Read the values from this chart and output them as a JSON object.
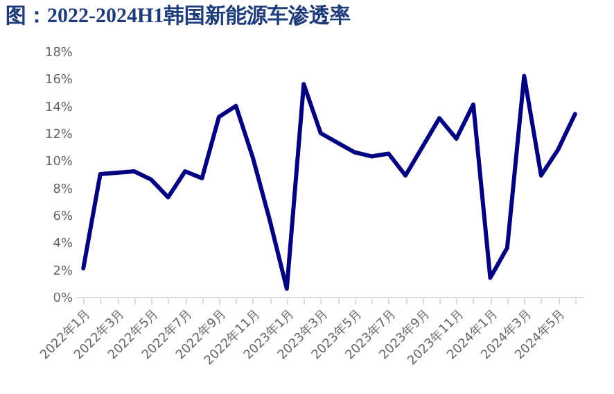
{
  "chart_data": {
    "type": "line",
    "title": "图：2022-2024H1韩国新能源车渗透率",
    "categories": [
      "2022年1月",
      null,
      "2022年3月",
      null,
      "2022年5月",
      null,
      "2022年7月",
      null,
      "2022年9月",
      null,
      "2022年11月",
      null,
      "2023年1月",
      null,
      "2023年3月",
      null,
      "2023年5月",
      null,
      "2023年7月",
      null,
      "2023年9月",
      null,
      "2023年11月",
      null,
      "2024年1月",
      null,
      "2024年3月",
      null,
      "2024年5月",
      null
    ],
    "series": [
      {
        "color": "#000080",
        "values": [
          2.1,
          9.0,
          9.1,
          9.2,
          8.6,
          7.3,
          9.2,
          8.7,
          13.2,
          14.0,
          10.2,
          5.6,
          0.6,
          15.6,
          12.0,
          11.3,
          10.6,
          10.3,
          10.5,
          8.9,
          11.0,
          13.1,
          11.6,
          14.1,
          1.4,
          3.6,
          16.2,
          8.9,
          10.8,
          13.4
        ]
      }
    ],
    "ylim": [
      0,
      18
    ],
    "yticks": [
      {
        "value": 0,
        "label": "0%"
      },
      {
        "value": 2,
        "label": "2%"
      },
      {
        "value": 4,
        "label": "4%"
      },
      {
        "value": 6,
        "label": "6%"
      },
      {
        "value": 8,
        "label": "8%"
      },
      {
        "value": 10,
        "label": "10%"
      },
      {
        "value": 12,
        "label": "12%"
      },
      {
        "value": 14,
        "label": "14%"
      },
      {
        "value": 16,
        "label": "16%"
      },
      {
        "value": 18,
        "label": "18%"
      }
    ],
    "grid": false,
    "marker": "none",
    "line_style": "solid"
  }
}
